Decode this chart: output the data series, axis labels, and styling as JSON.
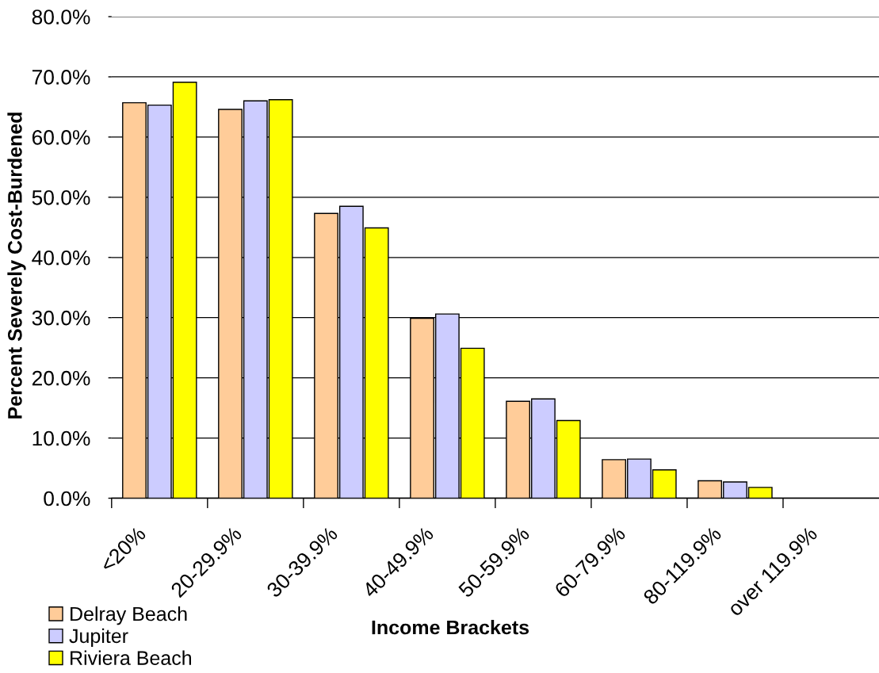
{
  "chart_data": {
    "type": "bar",
    "xlabel": "Income Brackets",
    "ylabel": "Percent Severely Cost-Burdened",
    "categories": [
      "<20%",
      "20-29.9%",
      "30-39.9%",
      "40-49.9%",
      "50-59.9%",
      "60-79.9%",
      "80-119.9%",
      "over 119.9%"
    ],
    "series": [
      {
        "name": "Delray Beach",
        "color": "#ffcc99",
        "values": [
          65.7,
          64.6,
          47.3,
          29.9,
          16.1,
          6.4,
          2.9,
          null
        ]
      },
      {
        "name": "Jupiter",
        "color": "#ccccff",
        "values": [
          65.3,
          66.0,
          48.5,
          30.6,
          16.5,
          6.5,
          2.7,
          null
        ]
      },
      {
        "name": "Riviera Beach",
        "color": "#ffff00",
        "values": [
          69.1,
          66.2,
          44.9,
          24.9,
          12.9,
          4.7,
          1.8,
          null
        ]
      }
    ],
    "ylim": [
      0,
      80
    ],
    "yticks": [
      {
        "value": 0,
        "label": "0.0%"
      },
      {
        "value": 10,
        "label": "10.0%"
      },
      {
        "value": 20,
        "label": "20.0%"
      },
      {
        "value": 30,
        "label": "30.0%"
      },
      {
        "value": 40,
        "label": "40.0%"
      },
      {
        "value": 50,
        "label": "50.0%"
      },
      {
        "value": 60,
        "label": "60.0%"
      },
      {
        "value": 70,
        "label": "70.0%"
      },
      {
        "value": 80,
        "label": "80.0%"
      }
    ],
    "grid": "y",
    "legend": "bottom left"
  }
}
